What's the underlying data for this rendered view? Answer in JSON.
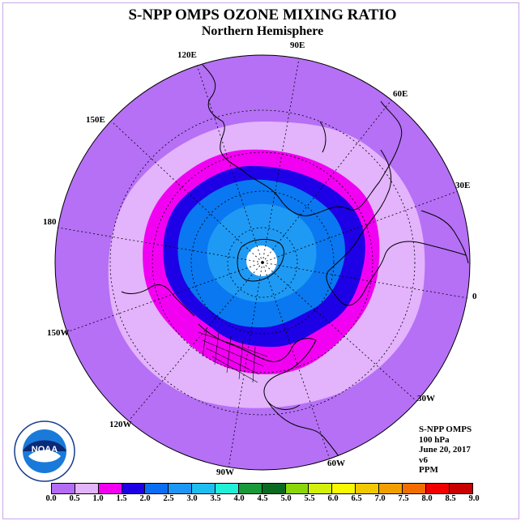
{
  "title": "S-NPP OMPS OZONE MIXING RATIO",
  "subtitle": "Northern Hemisphere",
  "longitude_labels": [
    "120E",
    "90E",
    "60E",
    "150E",
    "30E",
    "180",
    "0",
    "150W",
    "30W",
    "120W",
    "60W",
    "90W"
  ],
  "info": {
    "instrument": "S-NPP OMPS",
    "level": "100 hPa",
    "date": "June 20, 2017",
    "version": "v6",
    "units": "PPM"
  },
  "colorbar": {
    "ticks": [
      "0.0",
      "0.5",
      "1.0",
      "1.5",
      "2.0",
      "2.5",
      "3.0",
      "3.5",
      "4.0",
      "4.5",
      "5.0",
      "5.5",
      "6.0",
      "6.5",
      "7.0",
      "7.5",
      "8.0",
      "8.5",
      "9.0"
    ],
    "colors": [
      "#b36cf5",
      "#e3b3fc",
      "#f200f2",
      "#1e00e6",
      "#0a6ef5",
      "#1e96f5",
      "#1ebef0",
      "#20f0d8",
      "#189a3a",
      "#0a6a20",
      "#8ad60a",
      "#d2f00a",
      "#f8f800",
      "#f2c800",
      "#f2a000",
      "#f26e00",
      "#f20000",
      "#c80000",
      "#7a4a28"
    ]
  },
  "logo_text": "NOAA",
  "map_colors": {
    "ocean_outer": "#b570f5",
    "light_band": "#e3b3fc",
    "magenta_band": "#f200f2",
    "blue_band": "#1e00e6",
    "mid_blue": "#0a78f0",
    "light_blue": "#1e9af5",
    "pole": "#ffffff"
  }
}
